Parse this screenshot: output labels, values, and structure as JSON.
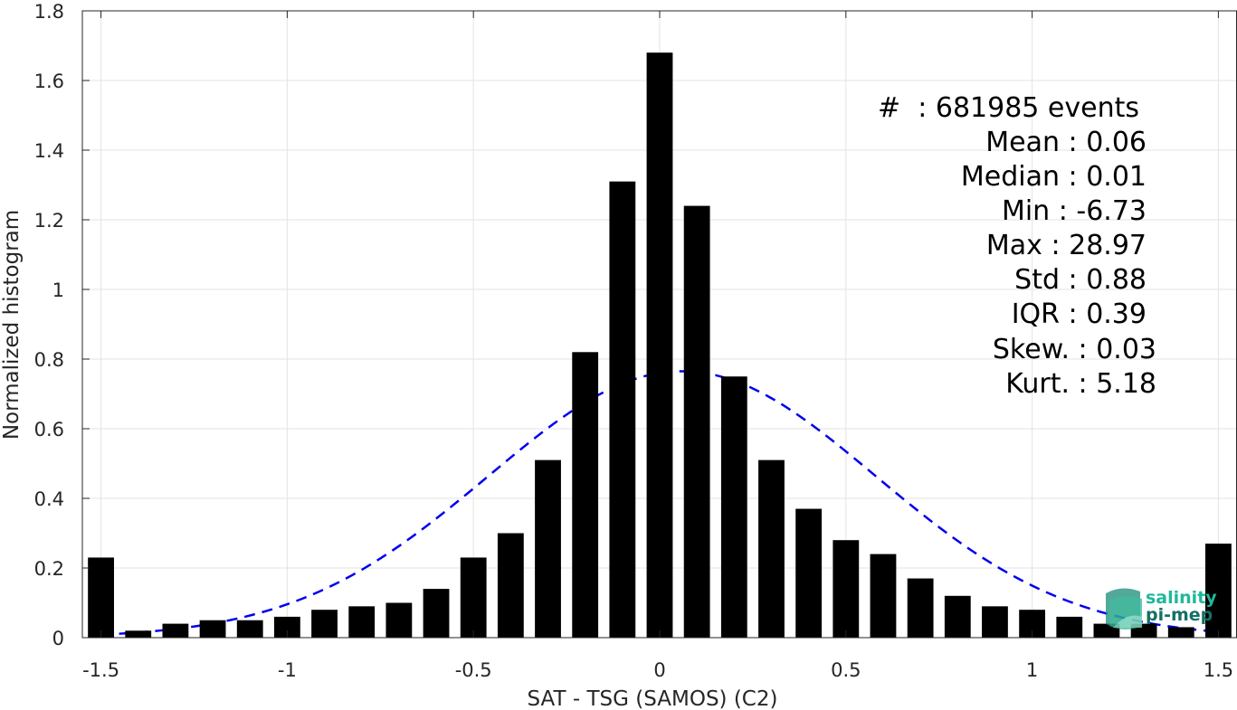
{
  "chart_data": {
    "type": "bar",
    "xlabel": "SAT - TSG (SAMOS) (C2)",
    "ylabel": "Normalized histogram",
    "xlim": [
      -1.55,
      1.55
    ],
    "ylim": [
      0,
      1.8
    ],
    "xticks": [
      -1.5,
      -1,
      -0.5,
      0,
      0.5,
      1,
      1.5
    ],
    "xtick_labels": [
      "-1.5",
      "-1",
      "-0.5",
      "0",
      "0.5",
      "1",
      "1.5"
    ],
    "yticks": [
      0,
      0.2,
      0.4,
      0.6,
      0.8,
      1,
      1.2,
      1.4,
      1.6,
      1.8
    ],
    "ytick_labels": [
      "0",
      "0.2",
      "0.4",
      "0.6",
      "0.8",
      "1",
      "1.2",
      "1.4",
      "1.6",
      "1.8"
    ],
    "grid": true,
    "bin_width": 0.1,
    "bar_color": "#000000",
    "x": [
      -1.5,
      -1.4,
      -1.3,
      -1.2,
      -1.1,
      -1.0,
      -0.9,
      -0.8,
      -0.7,
      -0.6,
      -0.5,
      -0.4,
      -0.3,
      -0.2,
      -0.1,
      0.0,
      0.1,
      0.2,
      0.3,
      0.4,
      0.5,
      0.6,
      0.7,
      0.8,
      0.9,
      1.0,
      1.1,
      1.2,
      1.3,
      1.4,
      1.5
    ],
    "values": [
      0.23,
      0.02,
      0.04,
      0.05,
      0.05,
      0.06,
      0.08,
      0.09,
      0.1,
      0.14,
      0.23,
      0.3,
      0.51,
      0.82,
      1.31,
      1.68,
      1.24,
      0.75,
      0.51,
      0.37,
      0.28,
      0.24,
      0.17,
      0.12,
      0.09,
      0.08,
      0.06,
      0.04,
      0.04,
      0.03,
      0.27
    ],
    "fit": {
      "type": "gaussian",
      "mean": 0.06,
      "std": 0.52,
      "peak": 0.765,
      "x_range": [
        -1.5,
        1.5
      ],
      "color": "#0000ee",
      "style": "dashed"
    },
    "stats": {
      "count_line": "#  : 681985 events",
      "lines": [
        "Mean : 0.06",
        "Median : 0.01",
        "Min : -6.73",
        "Max : 28.97",
        "Std : 0.88",
        "IQR : 0.39",
        "Skew. : 0.03",
        "Kurt. : 5.18"
      ]
    }
  },
  "logo": {
    "line1": "salinity",
    "line2": "pi-mep",
    "color1": "#1fb89a",
    "color2": "#146f64"
  }
}
